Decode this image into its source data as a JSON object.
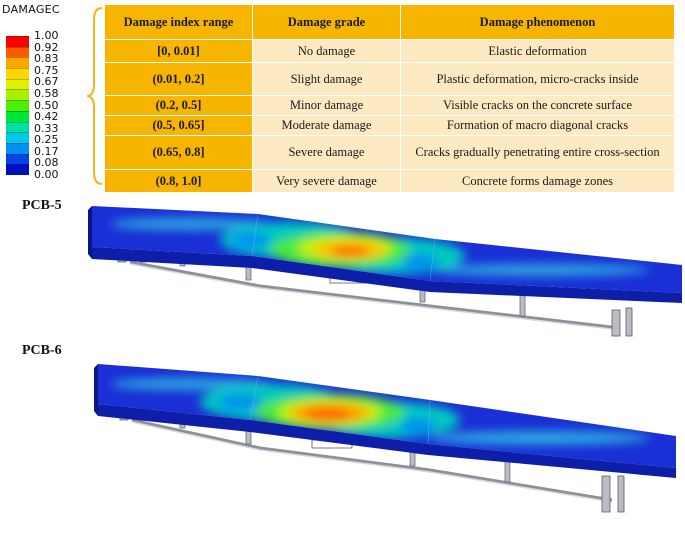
{
  "legend": {
    "title": "DAMAGEC",
    "ticks": [
      "1.00",
      "0.92",
      "0.83",
      "0.75",
      "0.67",
      "0.58",
      "0.50",
      "0.42",
      "0.33",
      "0.25",
      "0.17",
      "0.08",
      "0.00"
    ],
    "colors": [
      "#ff0000",
      "#ff5a00",
      "#ffa500",
      "#ffd700",
      "#e5f000",
      "#a8f000",
      "#4ef000",
      "#00e53a",
      "#00e0a0",
      "#00c8e6",
      "#0090f0",
      "#0044e8",
      "#0010c0"
    ]
  },
  "table": {
    "headers": [
      "Damage index range",
      "Damage grade",
      "Damage phenomenon"
    ],
    "rows": [
      {
        "range": "[0, 0.01]",
        "grade": "No damage",
        "phenomenon": "Elastic deformation"
      },
      {
        "range": "(0.01, 0.2]",
        "grade": "Slight damage",
        "phenomenon": "Plastic deformation, micro-cracks inside"
      },
      {
        "range": "(0.2, 0.5]",
        "grade": "Minor damage",
        "phenomenon": "Visible cracks on the concrete surface"
      },
      {
        "range": "(0.5, 0.65]",
        "grade": "Moderate damage",
        "phenomenon": "Formation of macro diagonal cracks"
      },
      {
        "range": "(0.65, 0.8]",
        "grade": "Severe damage",
        "phenomenon": "Cracks gradually penetrating entire cross-section"
      },
      {
        "range": "(0.8, 1.0]",
        "grade": "Very severe damage",
        "phenomenon": "Concrete forms damage zones"
      }
    ]
  },
  "models": [
    {
      "label": "PCB-5"
    },
    {
      "label": "PCB-6"
    }
  ],
  "colors": {
    "header_fill": "#f7b500",
    "cell_fill": "#fde9c2",
    "slab_base": "#1a2fd6",
    "slab_side": "#0a1aa0",
    "girder": "#b8bcc4"
  }
}
